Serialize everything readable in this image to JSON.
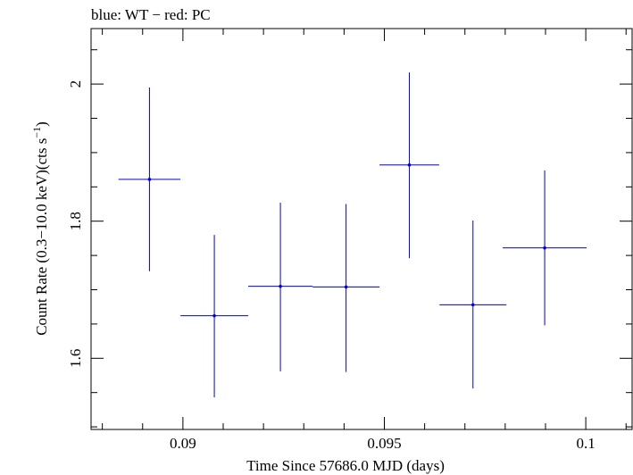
{
  "chart_data": {
    "type": "scatter",
    "title": "blue: WT − red: PC",
    "xlabel": "Time Since 57686.0 MJD (days)",
    "ylabel_main": "Count Rate (0.3−10.0 keV)(cts s",
    "ylabel_sup": "−1",
    "ylabel_close": ")",
    "xlim": [
      0.08772,
      0.10115
    ],
    "ylim": [
      1.4962,
      2.0809
    ],
    "x_ticks": [
      0.09,
      0.095,
      0.1
    ],
    "x_tick_labels": [
      "0.09",
      "0.095",
      "0.1"
    ],
    "x_minor_step": 0.001,
    "y_ticks": [
      1.6,
      1.8,
      2.0
    ],
    "y_tick_labels": [
      "1.6",
      "1.8",
      "2"
    ],
    "y_minor_step": 0.05,
    "series": [
      {
        "name": "WT",
        "color": "#0000dd",
        "points": [
          {
            "x": 0.08917,
            "xerr": 0.00077,
            "y": 1.861,
            "yerr_lo": 0.134,
            "yerr_hi": 0.134
          },
          {
            "x": 0.09078,
            "xerr": 0.00084,
            "y": 1.662,
            "yerr_lo": 0.119,
            "yerr_hi": 0.118
          },
          {
            "x": 0.09242,
            "xerr": 0.0008,
            "y": 1.705,
            "yerr_lo": 0.124,
            "yerr_hi": 0.122
          },
          {
            "x": 0.09405,
            "xerr": 0.00083,
            "y": 1.704,
            "yerr_lo": 0.124,
            "yerr_hi": 0.121
          },
          {
            "x": 0.09562,
            "xerr": 0.00074,
            "y": 1.882,
            "yerr_lo": 0.136,
            "yerr_hi": 0.135
          },
          {
            "x": 0.0972,
            "xerr": 0.00083,
            "y": 1.678,
            "yerr_lo": 0.122,
            "yerr_hi": 0.123
          },
          {
            "x": 0.09898,
            "xerr": 0.00104,
            "y": 1.761,
            "yerr_lo": 0.113,
            "yerr_hi": 0.113
          }
        ]
      }
    ]
  }
}
